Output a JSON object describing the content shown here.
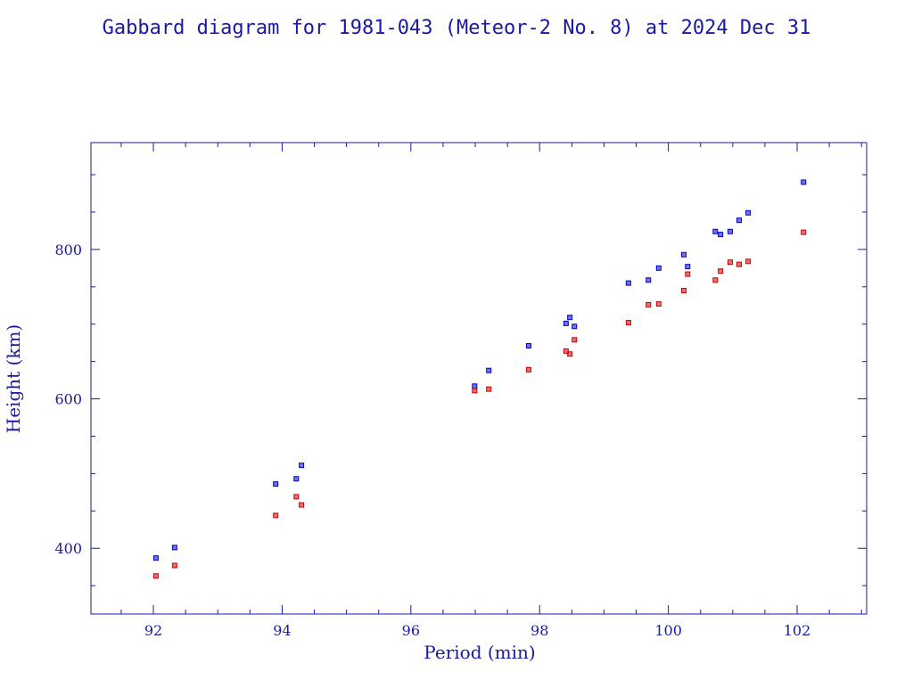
{
  "chart_data": {
    "type": "scatter",
    "title": "Gabbard diagram for 1981-043 (Meteor-2 No. 8) at 2024 Dec 31",
    "x_label": "Period (min)",
    "y_label": "Height (km)",
    "x": [
      92.04,
      92.33,
      93.9,
      94.22,
      94.3,
      96.99,
      97.21,
      97.83,
      98.41,
      98.47,
      98.54,
      99.38,
      99.69,
      99.85,
      100.24,
      100.3,
      100.73,
      100.81,
      100.96,
      101.1,
      101.24,
      102.1
    ],
    "series": [
      {
        "color": "#0000cc",
        "values": [
          387,
          401,
          486,
          493,
          511,
          617,
          638,
          671,
          701,
          709,
          697,
          755,
          759,
          775,
          793,
          777,
          824,
          820,
          824,
          839,
          849,
          890
        ]
      },
      {
        "color": "#cc0000",
        "values": [
          363,
          377,
          444,
          469,
          458,
          611,
          613,
          639,
          664,
          660,
          679,
          702,
          726,
          727,
          745,
          767,
          759,
          771,
          783,
          780,
          784,
          823
        ]
      }
    ],
    "xlim": [
      91.03,
      103.08
    ],
    "ylim": [
      312,
      943
    ],
    "xticks": [
      92,
      94,
      96,
      98,
      100,
      102
    ],
    "yticks": [
      400,
      600,
      800
    ],
    "xminorticks": [
      91.5,
      92.5,
      93,
      93.5,
      94.5,
      95,
      95.5,
      96.5,
      97,
      97.5,
      98.5,
      99,
      99.5,
      100.5,
      101,
      101.5,
      102.5,
      103
    ],
    "yminorticks": [
      350,
      450,
      500,
      550,
      650,
      700,
      750,
      850,
      900
    ],
    "grid": false
  }
}
